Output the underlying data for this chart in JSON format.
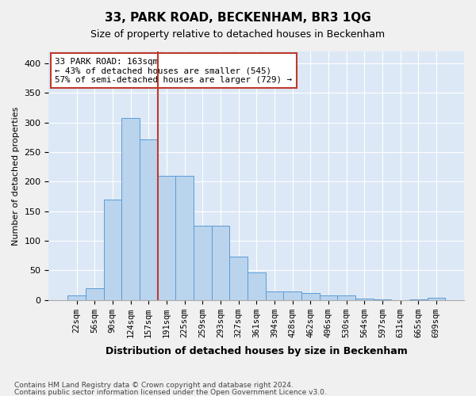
{
  "title": "33, PARK ROAD, BECKENHAM, BR3 1QG",
  "subtitle": "Size of property relative to detached houses in Beckenham",
  "xlabel": "Distribution of detached houses by size in Beckenham",
  "ylabel": "Number of detached properties",
  "bar_values": [
    7,
    20,
    170,
    307,
    272,
    210,
    210,
    125,
    125,
    73,
    47,
    14,
    14,
    11,
    8,
    8,
    2,
    1,
    0,
    1,
    4
  ],
  "categories": [
    "22sqm",
    "56sqm",
    "90sqm",
    "124sqm",
    "157sqm",
    "191sqm",
    "225sqm",
    "259sqm",
    "293sqm",
    "327sqm",
    "361sqm",
    "394sqm",
    "428sqm",
    "462sqm",
    "496sqm",
    "530sqm",
    "564sqm",
    "597sqm",
    "631sqm",
    "665sqm",
    "699sqm"
  ],
  "bar_color": "#bad4ed",
  "bar_edge_color": "#5b9bd5",
  "background_color": "#dce8f5",
  "grid_color": "#ffffff",
  "vline_color": "#c0392b",
  "vline_x": 4.5,
  "annotation_text": "33 PARK ROAD: 163sqm\n← 43% of detached houses are smaller (545)\n57% of semi-detached houses are larger (729) →",
  "annotation_box_color": "#ffffff",
  "annotation_box_edge": "#c0392b",
  "ylim": [
    0,
    420
  ],
  "yticks": [
    0,
    50,
    100,
    150,
    200,
    250,
    300,
    350,
    400
  ],
  "footer1": "Contains HM Land Registry data © Crown copyright and database right 2024.",
  "footer2": "Contains public sector information licensed under the Open Government Licence v3.0."
}
